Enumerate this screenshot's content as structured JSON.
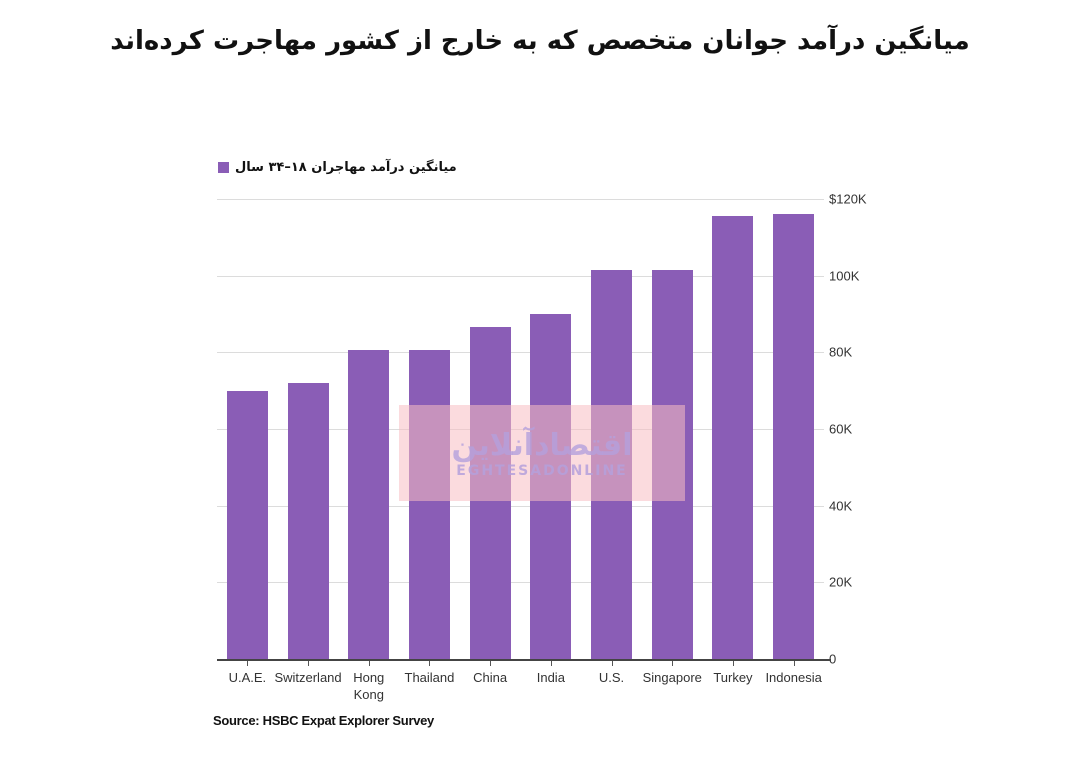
{
  "title": "میانگین درآمد جوانان متخصص که به خارج از کشور مهاجرت کرده‌اند",
  "legend": {
    "label": "میانگین درآمد مهاجران ۱۸–۳۴ سال",
    "color": "#8a5db6"
  },
  "y_axis": {
    "ticks": [
      "$120K",
      "100K",
      "80K",
      "60K",
      "40K",
      "20K",
      "0"
    ]
  },
  "x_axis": {
    "labels": [
      "U.A.E.",
      "Switzerland",
      "Hong Kong",
      "Thailand",
      "China",
      "India",
      "U.S.",
      "Singapore",
      "Turkey",
      "Indonesia"
    ]
  },
  "source": "Source: HSBC Expat Explorer Survey",
  "watermark": {
    "fa": "اقتصادآنلاین",
    "en": "EGHTESADONLINE"
  },
  "chart_data": {
    "type": "bar",
    "title": "میانگین درآمد جوانان متخصص که به خارج از کشور مهاجرت کرده‌اند",
    "categories": [
      "U.A.E.",
      "Switzerland",
      "Hong Kong",
      "Thailand",
      "China",
      "India",
      "U.S.",
      "Singapore",
      "Turkey",
      "Indonesia"
    ],
    "series": [
      {
        "name": "میانگین درآمد مهاجران ۱۸–۳۴ سال",
        "values": [
          70000,
          72000,
          80500,
          80700,
          86500,
          90000,
          101500,
          101500,
          115500,
          116000
        ],
        "color": "#8a5db6"
      }
    ],
    "xlabel": "",
    "ylabel": "",
    "ylim": [
      0,
      120000
    ],
    "yticks": [
      0,
      20000,
      40000,
      60000,
      80000,
      100000,
      120000
    ],
    "ytick_labels": [
      "0",
      "20K",
      "40K",
      "60K",
      "80K",
      "100K",
      "$120K"
    ],
    "y_axis_position": "right",
    "grid": true,
    "legend_position": "top-left",
    "source": "Source: HSBC Expat Explorer Survey"
  }
}
